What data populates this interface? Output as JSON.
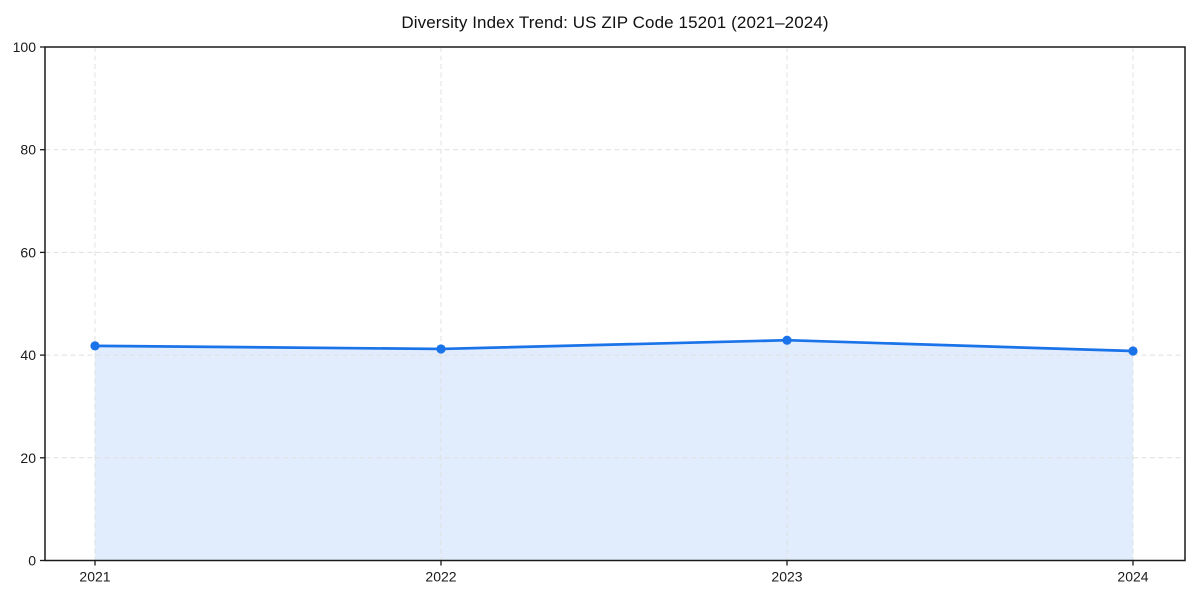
{
  "chart_data": {
    "type": "area",
    "title": "Diversity Index Trend: US ZIP Code 15201 (2021–2024)",
    "categories": [
      "2021",
      "2022",
      "2023",
      "2024"
    ],
    "values": [
      41.8,
      41.2,
      42.9,
      40.8
    ],
    "xlabel": "",
    "ylabel": "",
    "ylim": [
      0,
      100
    ],
    "yticks": [
      0,
      20,
      40,
      60,
      80,
      100
    ],
    "grid": "dashed-both-axes",
    "legend": "none",
    "marker": "circle",
    "colors": {
      "line": "#1a73e8",
      "marker": "#1a73e8",
      "fill": "rgba(26,115,232,0.13)",
      "grid": "#e0e0e0",
      "spine": "#1a1a1a",
      "tick_text": "#1a1a1a",
      "background": "#ffffff"
    }
  }
}
